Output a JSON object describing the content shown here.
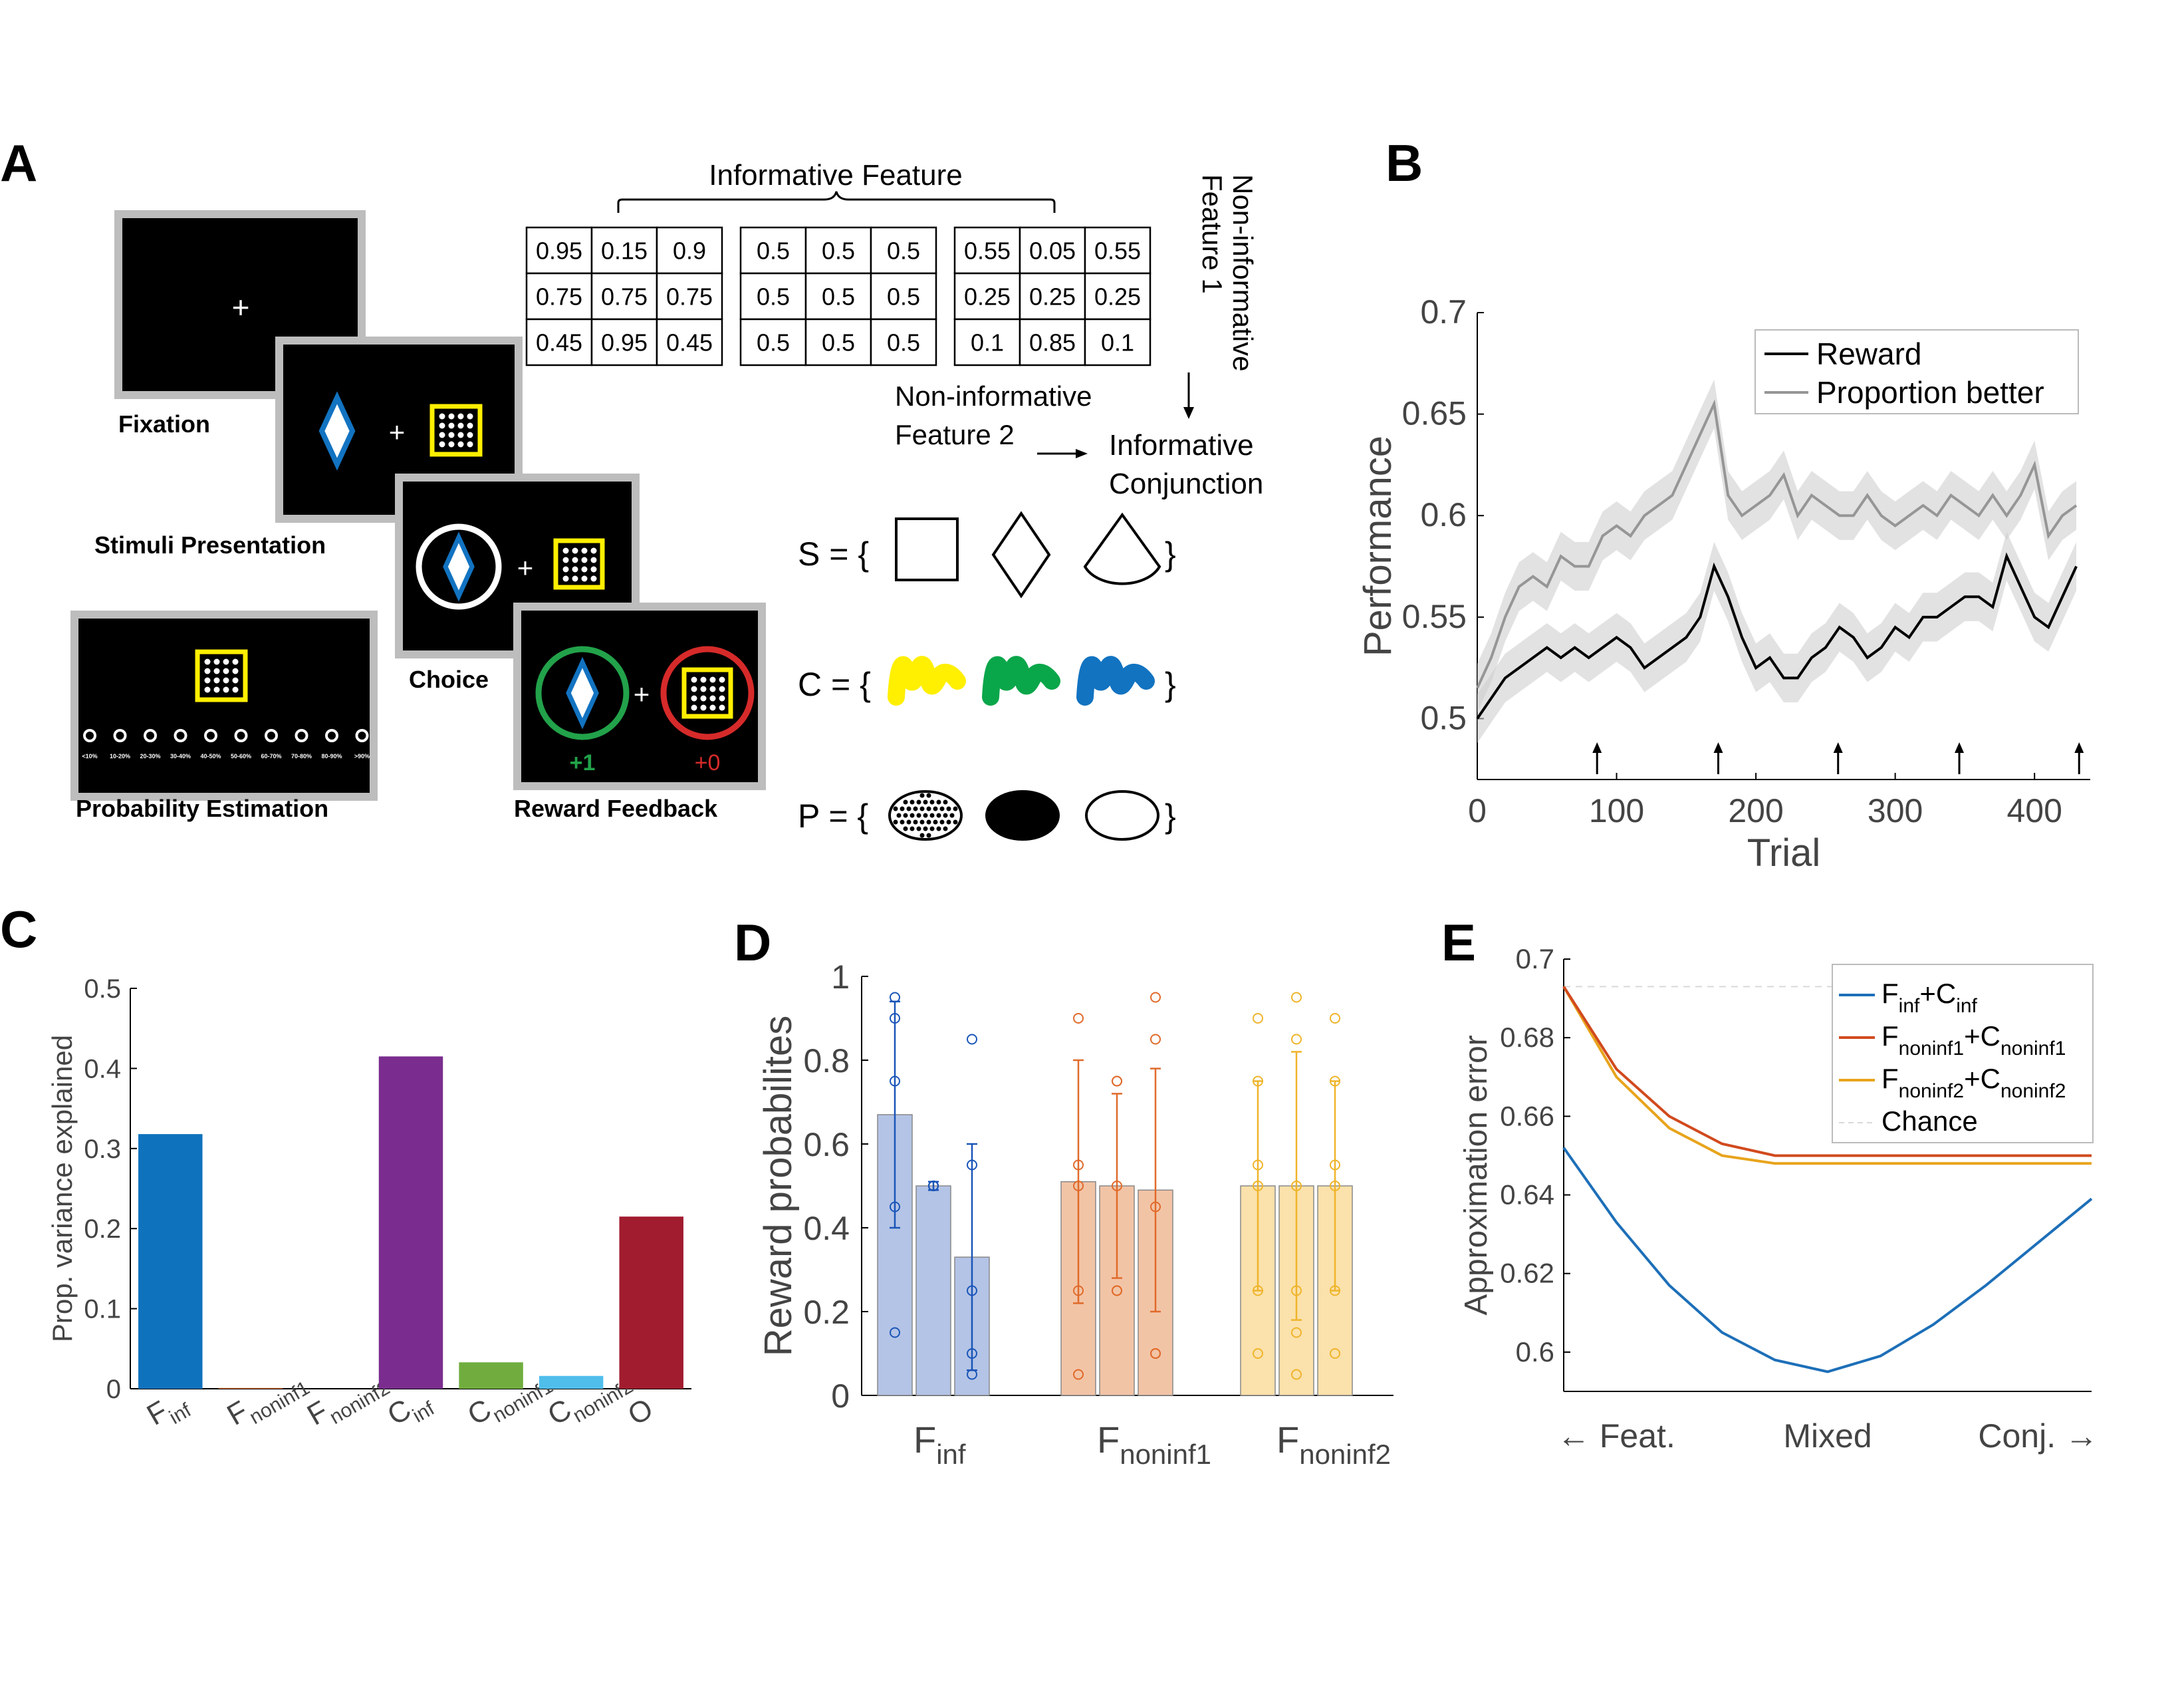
{
  "panel_letters": [
    "A",
    "B",
    "C",
    "D",
    "E"
  ],
  "panelA": {
    "screens": {
      "fixation": "Fixation",
      "stimuli": "Stimuli Presentation",
      "choice": "Choice",
      "probability": "Probability Estimation",
      "feedback": "Reward Feedback"
    },
    "fixation_cross": "+",
    "reward_left": "+1",
    "reward_right": "+0",
    "scale_ticks": [
      "<10%",
      "10-20%",
      "20-30%",
      "30-40%",
      "40-50%",
      "50-60%",
      "60-70%",
      "70-80%",
      "80-90%",
      ">90%"
    ],
    "informative_feature": "Informative Feature",
    "noninf_feature1": [
      "Non-informative",
      "Feature 1"
    ],
    "noninf_feature2": [
      "Non-informative",
      "Feature 2"
    ],
    "informative_conjunction": [
      "Informative",
      "Conjunction"
    ],
    "tables": [
      [
        [
          "0.95",
          "0.15",
          "0.9"
        ],
        [
          "0.75",
          "0.75",
          "0.75"
        ],
        [
          "0.45",
          "0.95",
          "0.45"
        ]
      ],
      [
        [
          "0.5",
          "0.5",
          "0.5"
        ],
        [
          "0.5",
          "0.5",
          "0.5"
        ],
        [
          "0.5",
          "0.5",
          "0.5"
        ]
      ],
      [
        [
          "0.55",
          "0.05",
          "0.55"
        ],
        [
          "0.25",
          "0.25",
          "0.25"
        ],
        [
          "0.1",
          "0.85",
          "0.1"
        ]
      ]
    ],
    "sets": [
      {
        "label": "S = {",
        "close": "}"
      },
      {
        "label": "C = {",
        "close": "}"
      },
      {
        "label": "P = {",
        "close": "}"
      }
    ],
    "colors": {
      "yellow": "#ffef00",
      "green": "#0aa64a",
      "blue": "#1273c1",
      "ring_green": "#22a24a",
      "ring_red": "#d62a2a",
      "frame": "#bdbdbd"
    }
  },
  "panelB": {
    "chart_data": {
      "type": "line",
      "xlabel": "Trial",
      "ylabel": "Performance",
      "xlim": [
        0,
        440
      ],
      "ylim": [
        0.47,
        0.7
      ],
      "xticks": [
        0,
        100,
        200,
        300,
        400
      ],
      "yticks": [
        0.5,
        0.55,
        0.6,
        0.65,
        0.7
      ],
      "legend_position": "top-right",
      "arrows_x": [
        86,
        173,
        259,
        346,
        432
      ],
      "series": [
        {
          "name": "Reward",
          "color": "#000000",
          "x": [
            0,
            10,
            20,
            30,
            40,
            50,
            60,
            70,
            80,
            90,
            100,
            110,
            120,
            130,
            140,
            150,
            160,
            170,
            180,
            190,
            200,
            210,
            220,
            230,
            240,
            250,
            260,
            270,
            280,
            290,
            300,
            310,
            320,
            330,
            340,
            350,
            360,
            370,
            380,
            390,
            400,
            410,
            420,
            430
          ],
          "values": [
            0.5,
            0.51,
            0.52,
            0.525,
            0.53,
            0.535,
            0.53,
            0.535,
            0.53,
            0.535,
            0.54,
            0.535,
            0.525,
            0.53,
            0.535,
            0.54,
            0.55,
            0.575,
            0.56,
            0.54,
            0.525,
            0.53,
            0.52,
            0.52,
            0.53,
            0.535,
            0.545,
            0.54,
            0.53,
            0.535,
            0.545,
            0.54,
            0.55,
            0.55,
            0.555,
            0.56,
            0.56,
            0.555,
            0.58,
            0.565,
            0.55,
            0.545,
            0.56,
            0.575
          ]
        },
        {
          "name": "Proportion better",
          "color": "#969696",
          "x": [
            0,
            10,
            20,
            30,
            40,
            50,
            60,
            70,
            80,
            90,
            100,
            110,
            120,
            130,
            140,
            150,
            160,
            170,
            180,
            190,
            200,
            210,
            220,
            230,
            240,
            250,
            260,
            270,
            280,
            290,
            300,
            310,
            320,
            330,
            340,
            350,
            360,
            370,
            380,
            390,
            400,
            410,
            420,
            430
          ],
          "values": [
            0.515,
            0.53,
            0.55,
            0.565,
            0.57,
            0.565,
            0.58,
            0.575,
            0.575,
            0.59,
            0.595,
            0.59,
            0.6,
            0.605,
            0.61,
            0.625,
            0.64,
            0.655,
            0.61,
            0.6,
            0.605,
            0.61,
            0.62,
            0.6,
            0.61,
            0.605,
            0.6,
            0.6,
            0.61,
            0.6,
            0.595,
            0.6,
            0.605,
            0.6,
            0.61,
            0.605,
            0.6,
            0.61,
            0.6,
            0.61,
            0.625,
            0.59,
            0.6,
            0.605
          ]
        }
      ]
    }
  },
  "panelC": {
    "chart_data": {
      "type": "bar",
      "ylabel": "Prop. variance explained",
      "ylim": [
        0,
        0.5
      ],
      "yticks": [
        "0",
        "0.1",
        "0.2",
        "0.3",
        "0.4",
        "0.5"
      ],
      "categories": [
        {
          "main": "F",
          "sub": "inf"
        },
        {
          "main": "F",
          "sub": "noninf1"
        },
        {
          "main": "F",
          "sub": "noninf2"
        },
        {
          "main": "C",
          "sub": "inf"
        },
        {
          "main": "C",
          "sub": "noninf1"
        },
        {
          "main": "C",
          "sub": "noninf2"
        },
        {
          "main": "O",
          "sub": ""
        }
      ],
      "values": [
        0.318,
        0.001,
        0.0,
        0.415,
        0.033,
        0.016,
        0.215
      ],
      "colors": [
        "#0f72bd",
        "#d15a1d",
        "#e8a21d",
        "#7a2d8e",
        "#70ad3e",
        "#4fbeeb",
        "#a11c2f"
      ]
    }
  },
  "panelD": {
    "chart_data": {
      "type": "bar",
      "ylabel": "Reward probabilites",
      "ylim": [
        0,
        1
      ],
      "yticks": [
        "0",
        "0.2",
        "0.4",
        "0.6",
        "0.8",
        "1"
      ],
      "groups": [
        {
          "main": "F",
          "sub": "inf",
          "color": "#1a55b8",
          "fill": "#b4c4e6",
          "values": [
            0.67,
            0.5,
            0.33
          ],
          "errors": [
            0.27,
            0.01,
            0.27
          ],
          "points": [
            [
              0.95,
              0.9,
              0.75,
              0.45,
              0.15
            ],
            [
              0.5,
              0.5,
              0.5,
              0.5
            ],
            [
              0.85,
              0.55,
              0.25,
              0.1,
              0.05
            ]
          ]
        },
        {
          "main": "F",
          "sub": "noninf1",
          "color": "#e06a2a",
          "fill": "#f2c4a6",
          "values": [
            0.51,
            0.5,
            0.49
          ],
          "errors": [
            0.29,
            0.22,
            0.29
          ],
          "points": [
            [
              0.9,
              0.55,
              0.5,
              0.25,
              0.05
            ],
            [
              0.75,
              0.75,
              0.5,
              0.25,
              0.25
            ],
            [
              0.95,
              0.85,
              0.45,
              0.1,
              0.1
            ]
          ]
        },
        {
          "main": "F",
          "sub": "noninf2",
          "color": "#efb42a",
          "fill": "#fbe1ab",
          "values": [
            0.5,
            0.5,
            0.5
          ],
          "errors": [
            0.25,
            0.32,
            0.25
          ],
          "points": [
            [
              0.9,
              0.75,
              0.55,
              0.5,
              0.25,
              0.1
            ],
            [
              0.95,
              0.85,
              0.5,
              0.25,
              0.15,
              0.05
            ],
            [
              0.9,
              0.75,
              0.55,
              0.5,
              0.25,
              0.1
            ]
          ]
        }
      ]
    }
  },
  "panelE": {
    "chart_data": {
      "type": "line",
      "ylabel": "Approximation error",
      "ylim": [
        0.59,
        0.7
      ],
      "yticks": [
        "0.6",
        "0.62",
        "0.64",
        "0.66",
        "0.68",
        "0.7"
      ],
      "x_labels": [
        "← Feat.",
        "Mixed",
        "Conj. →"
      ],
      "legend_position": "top-right",
      "legend": [
        {
          "main1": "F",
          "sub1": "inf",
          "mid": "+C",
          "sub2": "inf",
          "color": "#1d6fb8"
        },
        {
          "main1": "F",
          "sub1": "noninf1",
          "mid": "+C",
          "sub2": "noninf1",
          "color": "#d14a1e"
        },
        {
          "main1": "F",
          "sub1": "noninf2",
          "mid": "+C",
          "sub2": "noninf2",
          "color": "#e8a41c"
        },
        {
          "main1": "Chance",
          "sub1": "",
          "mid": "",
          "sub2": "",
          "color": "#d9d9d9"
        }
      ],
      "x": [
        0,
        0.1,
        0.2,
        0.3,
        0.4,
        0.5,
        0.6,
        0.7,
        0.8,
        0.9,
        1.0
      ],
      "series": [
        {
          "color": "#1d6fb8",
          "values": [
            0.652,
            0.633,
            0.617,
            0.605,
            0.598,
            0.595,
            0.599,
            0.607,
            0.617,
            0.628,
            0.639
          ]
        },
        {
          "color": "#d14a1e",
          "values": [
            0.693,
            0.672,
            0.66,
            0.653,
            0.65,
            0.65,
            0.65,
            0.65,
            0.65,
            0.65,
            0.65
          ]
        },
        {
          "color": "#e8a41c",
          "values": [
            0.693,
            0.67,
            0.657,
            0.65,
            0.648,
            0.648,
            0.648,
            0.648,
            0.648,
            0.648,
            0.648
          ]
        },
        {
          "color": "#d9d9d9",
          "values": [
            0.693,
            0.693,
            0.693,
            0.693,
            0.693,
            0.693,
            0.693,
            0.693,
            0.693,
            0.693,
            0.693
          ]
        }
      ]
    }
  }
}
